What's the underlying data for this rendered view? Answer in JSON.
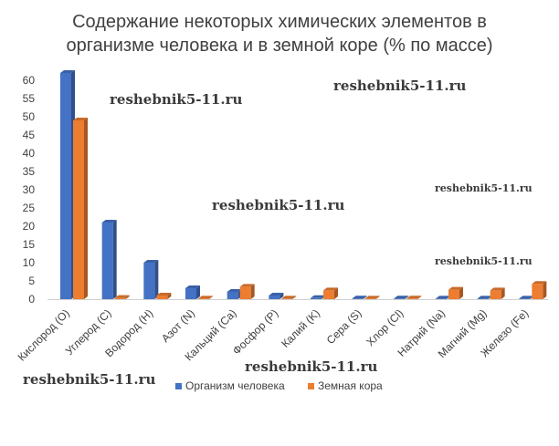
{
  "chart_data": {
    "type": "bar",
    "title_lines": [
      "Содержание некоторых химических элементов в",
      "организме человека и в земной коре (% по массе)"
    ],
    "categories": [
      "Кислород (O)",
      "Углерод (С)",
      "Водород (H)",
      "Азот (N)",
      "Кальций (Ca)",
      "Фосфор (P)",
      "Калий (K)",
      "Сера (S)",
      "Хлор (Cl)",
      "Натрий (Na)",
      "Магний (Mg)",
      "Железо (Fe)"
    ],
    "series": [
      {
        "name": "Организм человека",
        "color": "#4472C4",
        "values": [
          62,
          21,
          10,
          3,
          2,
          1,
          0.3,
          0.2,
          0.2,
          0.1,
          0.1,
          0.01
        ]
      },
      {
        "name": "Земная кора",
        "color": "#ED7D31",
        "values": [
          49,
          0.35,
          1,
          0.1,
          3.4,
          0.1,
          2.4,
          0.1,
          0.2,
          2.6,
          2.4,
          4.2
        ]
      }
    ],
    "yticks": [
      0,
      5,
      10,
      15,
      20,
      25,
      30,
      35,
      40,
      45,
      50,
      55,
      60
    ],
    "ylim": [
      0,
      62
    ],
    "grid": false,
    "legend_position": "bottom",
    "style": "3d-column"
  },
  "watermarks": [
    "reshebnik5-11.ru",
    "reshebnik5-11.ru",
    "reshebnik5-11.ru",
    "reshebnik5-11.ru",
    "reshebnik5-11.ru",
    "reshebnik5-11.ru",
    "reshebnik5-11.ru"
  ]
}
